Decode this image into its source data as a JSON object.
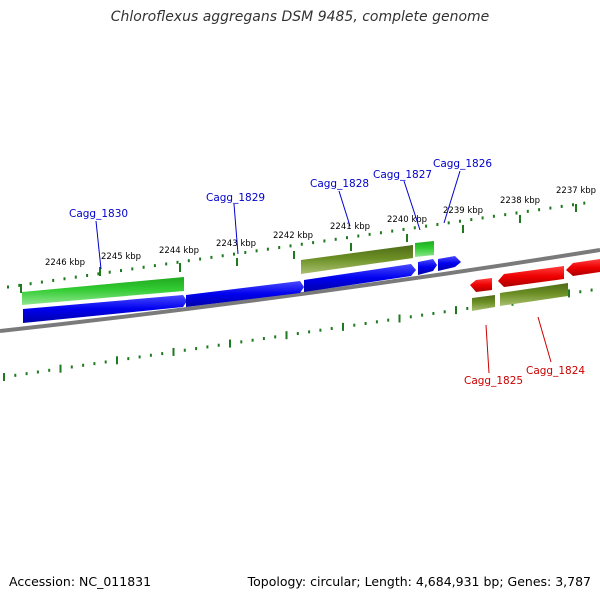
{
  "title": "Chloroflexus aggregans DSM 9485, complete genome",
  "footer": {
    "accession": "Accession: NC_011831",
    "summary": "Topology: circular; Length: 4,684,931 bp; Genes: 3,787"
  },
  "colors": {
    "backbone": "#7a7a7a",
    "ticks": "#1f7a1f",
    "cds": "#0000ee",
    "rna": "#33cc33",
    "pseudo": "#6b8e23",
    "reverse": "#ee0000",
    "label_forward": "#0000cc",
    "label_reverse": "#cc0000",
    "tick_label": "#000000"
  },
  "ticks": {
    "upper": [
      "2246 kbp",
      "2245 kbp",
      "2244 kbp",
      "2243 kbp",
      "2242 kbp",
      "2241 kbp",
      "2240 kbp",
      "2239 kbp",
      "2238 kbp",
      "2237 kbp"
    ]
  },
  "genes": {
    "forward_labels": [
      "Cagg_1830",
      "Cagg_1829",
      "Cagg_1828",
      "Cagg_1827",
      "Cagg_1826"
    ],
    "reverse_labels": [
      "Cagg_1825",
      "Cagg_1824"
    ]
  }
}
